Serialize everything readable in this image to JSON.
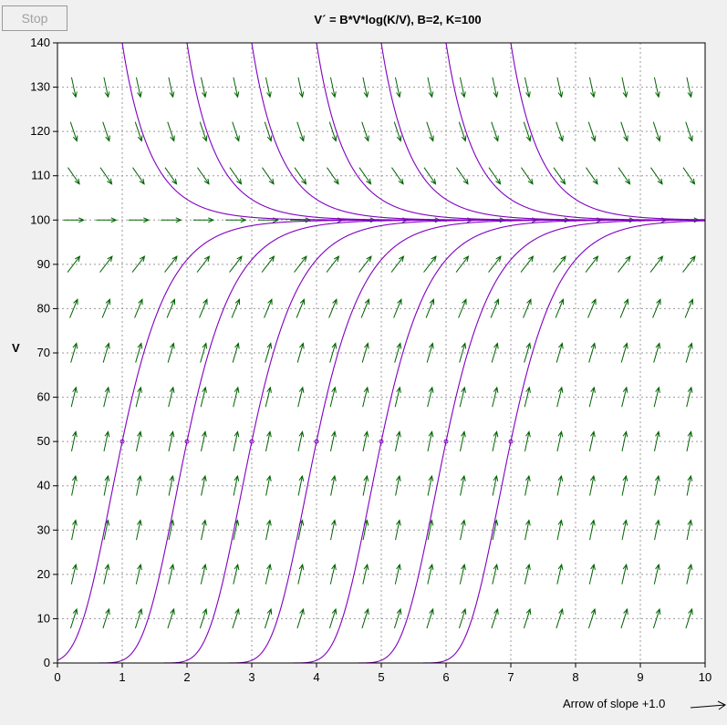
{
  "controls": {
    "stop_label": "Stop"
  },
  "chart_data": {
    "type": "line",
    "title": "V´ = B*V*log(K/V),       B=2,       K=100",
    "equation": "V´ = B*V*log(K/V)",
    "parameters": {
      "B": 2,
      "K": 100
    },
    "xlabel": "",
    "ylabel": "V",
    "xlim": [
      0,
      10
    ],
    "ylim": [
      0,
      140
    ],
    "x_ticks": [
      "0",
      "1",
      "2",
      "3",
      "4",
      "5",
      "6",
      "7",
      "8",
      "9",
      "10"
    ],
    "y_ticks": [
      "0",
      "10",
      "20",
      "30",
      "40",
      "50",
      "60",
      "70",
      "80",
      "90",
      "100",
      "110",
      "120",
      "130",
      "140"
    ],
    "grid": true,
    "direction_field": {
      "x_step": 0.5,
      "y_step": 10,
      "arrow_color": "#006400",
      "legend_text": "Arrow of slope +1.0"
    },
    "solution_curves": {
      "color": "#8000c0",
      "initial_points_lower": [
        {
          "x": 1,
          "y": 50
        },
        {
          "x": 2,
          "y": 50
        },
        {
          "x": 3,
          "y": 50
        },
        {
          "x": 4,
          "y": 50
        },
        {
          "x": 5,
          "y": 50
        },
        {
          "x": 6,
          "y": 50
        },
        {
          "x": 7,
          "y": 50
        }
      ],
      "initial_points_upper": [
        {
          "x": 1,
          "y": 140
        },
        {
          "x": 2,
          "y": 140
        },
        {
          "x": 3,
          "y": 140
        },
        {
          "x": 4,
          "y": 140
        },
        {
          "x": 5,
          "y": 140
        },
        {
          "x": 6,
          "y": 140
        },
        {
          "x": 7,
          "y": 140
        }
      ]
    }
  }
}
